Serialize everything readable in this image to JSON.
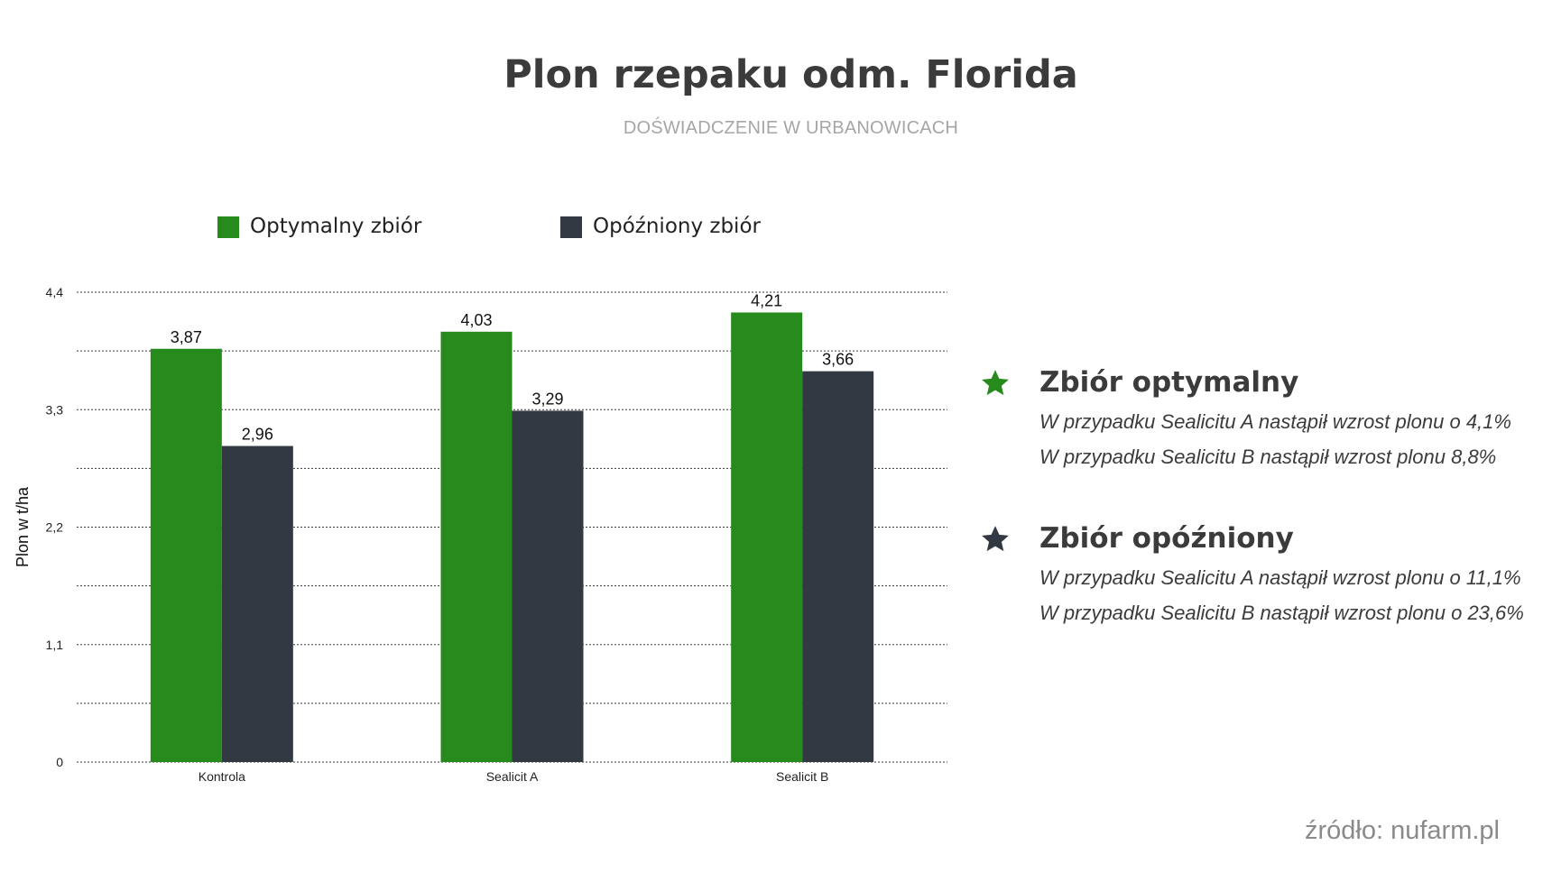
{
  "header": {
    "title": "Plon rzepaku odm. Florida",
    "subtitle": "DOŚWIADCZENIE W URBANOWICACH"
  },
  "legend": [
    {
      "label": "Optymalny zbiór",
      "color": "#268a1d"
    },
    {
      "label": "Opóźniony zbiór",
      "color": "#323942"
    }
  ],
  "chart_data": {
    "type": "bar",
    "categories": [
      "Kontrola",
      "Sealicit A",
      "Sealicit B"
    ],
    "series": [
      {
        "name": "Optymalny zbiór",
        "color": "#268a1d",
        "values": [
          3.87,
          4.03,
          4.21
        ],
        "labels": [
          "3,87",
          "4,03",
          "4,21"
        ]
      },
      {
        "name": "Opóźniony zbiór",
        "color": "#323942",
        "values": [
          2.96,
          3.29,
          3.66
        ],
        "labels": [
          "2,96",
          "3,29",
          "3,66"
        ]
      }
    ],
    "ylabel": "Plon w t/ha",
    "ylim": [
      0,
      4.4
    ],
    "yticks": [
      0,
      1.1,
      2.2,
      3.3,
      4.4
    ],
    "ytick_labels": [
      "0",
      "1,1",
      "2,2",
      "3,3",
      "4,4"
    ],
    "grid": "dotted horizontal",
    "legend_position": "top"
  },
  "side_panel": [
    {
      "star_color": "#268a1d",
      "star_icon": "star-icon",
      "heading": "Zbiór optymalny",
      "notes": [
        "W przypadku Sealicitu A nastąpił wzrost plonu o 4,1%",
        "W przypadku Sealicitu B nastąpił wzrost plonu 8,8%"
      ]
    },
    {
      "star_color": "#323942",
      "star_icon": "star-icon",
      "heading": "Zbiór opóźniony",
      "notes": [
        "W przypadku Sealicitu A nastąpił wzrost plonu o 11,1%",
        "W przypadku Sealicitu B nastąpił wzrost plonu o 23,6%"
      ]
    }
  ],
  "source": "źródło: nufarm.pl"
}
